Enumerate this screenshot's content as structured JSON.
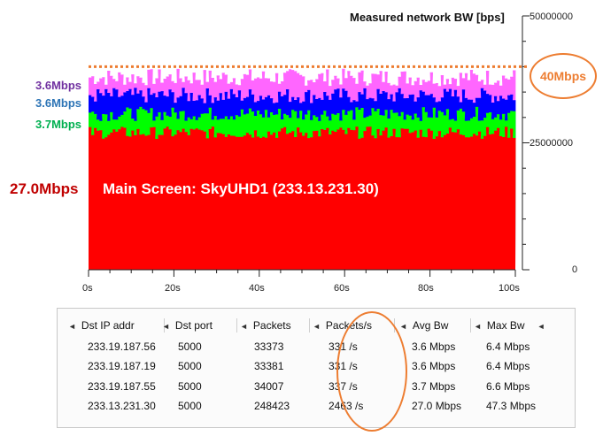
{
  "chart_data": {
    "type": "area",
    "stacked": true,
    "title": "Measured network BW [bps]",
    "x_ticks": [
      "0s",
      "20s",
      "40s",
      "60s",
      "80s",
      "100s"
    ],
    "xlim": [
      0,
      100
    ],
    "y_ticks": [
      "50000000",
      "25000000",
      "0"
    ],
    "ylim": [
      0,
      50000000
    ],
    "grid": false,
    "series": [
      {
        "name": "27.0Mbps",
        "avg_bps": 27000000,
        "color": "#ff0000"
      },
      {
        "name": "3.7Mbps",
        "avg_bps": 3700000,
        "color": "#00ff00"
      },
      {
        "name": "3.6Mbps",
        "avg_bps": 3600000,
        "color": "#0000ff"
      },
      {
        "name": "3.6Mbps",
        "avg_bps": 3600000,
        "color": "#ff66ff"
      }
    ],
    "capacity_line": {
      "label": "40Mbps",
      "value_bps": 40000000,
      "color": "#ed7d31"
    },
    "annotation": "Main Screen: SkyUHD1 (233.13.231.30)"
  },
  "table": {
    "headers": [
      "Dst IP addr",
      "Dst port",
      "Packets",
      "Packets/s",
      "Avg Bw",
      "Max Bw"
    ],
    "rows": [
      [
        "233.19.187.56",
        "5000",
        "33373",
        "331 /s",
        "3.6 Mbps",
        "6.4 Mbps"
      ],
      [
        "233.19.187.19",
        "5000",
        "33381",
        "331 /s",
        "3.6 Mbps",
        "6.4 Mbps"
      ],
      [
        "233.19.187.55",
        "5000",
        "34007",
        "337 /s",
        "3.7 Mbps",
        "6.6 Mbps"
      ],
      [
        "233.13.231.30",
        "5000",
        "248423",
        "2463 /s",
        "27.0 Mbps",
        "47.3 Mbps"
      ]
    ]
  },
  "colors": {
    "accent": "#ed7d31",
    "main_label": "#c00000",
    "legend_purple": "#7030a0",
    "legend_blue": "#2e75b6",
    "legend_green": "#00b050"
  }
}
